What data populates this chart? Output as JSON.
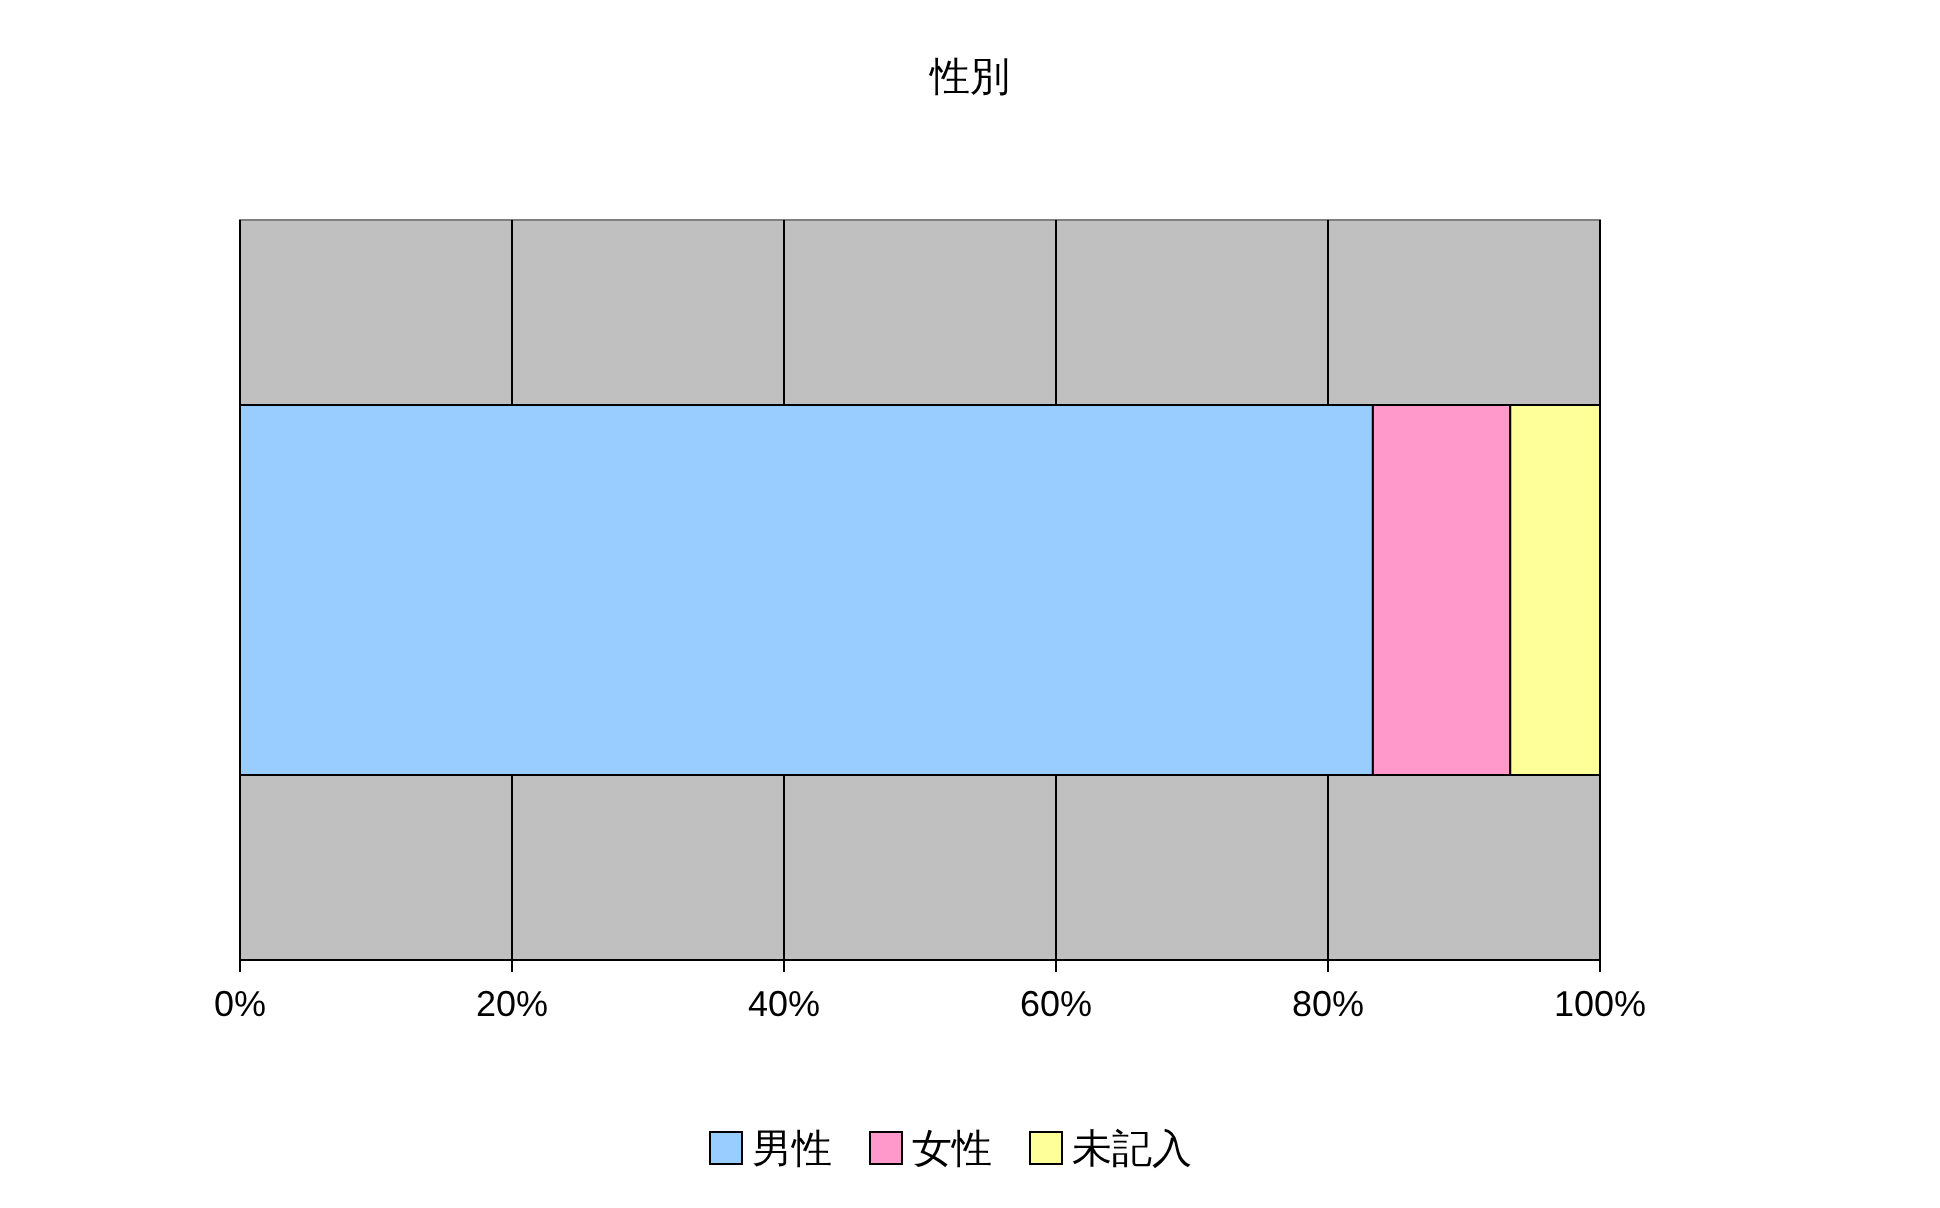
{
  "chart_data": {
    "type": "bar",
    "title": "性別",
    "orientation": "horizontal",
    "stacked": true,
    "categories": [
      null
    ],
    "series": [
      {
        "name": "男性",
        "color": "#99ccff",
        "values": [
          83.3
        ]
      },
      {
        "name": "女性",
        "color": "#ff99cc",
        "values": [
          10.1
        ]
      },
      {
        "name": "未記入",
        "color": "#ffff99",
        "values": [
          6.6
        ]
      }
    ],
    "xlim": [
      0,
      100
    ],
    "xticks": [
      {
        "value": 0,
        "label": "0%"
      },
      {
        "value": 20,
        "label": "20%"
      },
      {
        "value": 40,
        "label": "40%"
      },
      {
        "value": 60,
        "label": "60%"
      },
      {
        "value": 80,
        "label": "80%"
      },
      {
        "value": 100,
        "label": "100%"
      }
    ],
    "grid": "x",
    "legend": "bottom"
  }
}
